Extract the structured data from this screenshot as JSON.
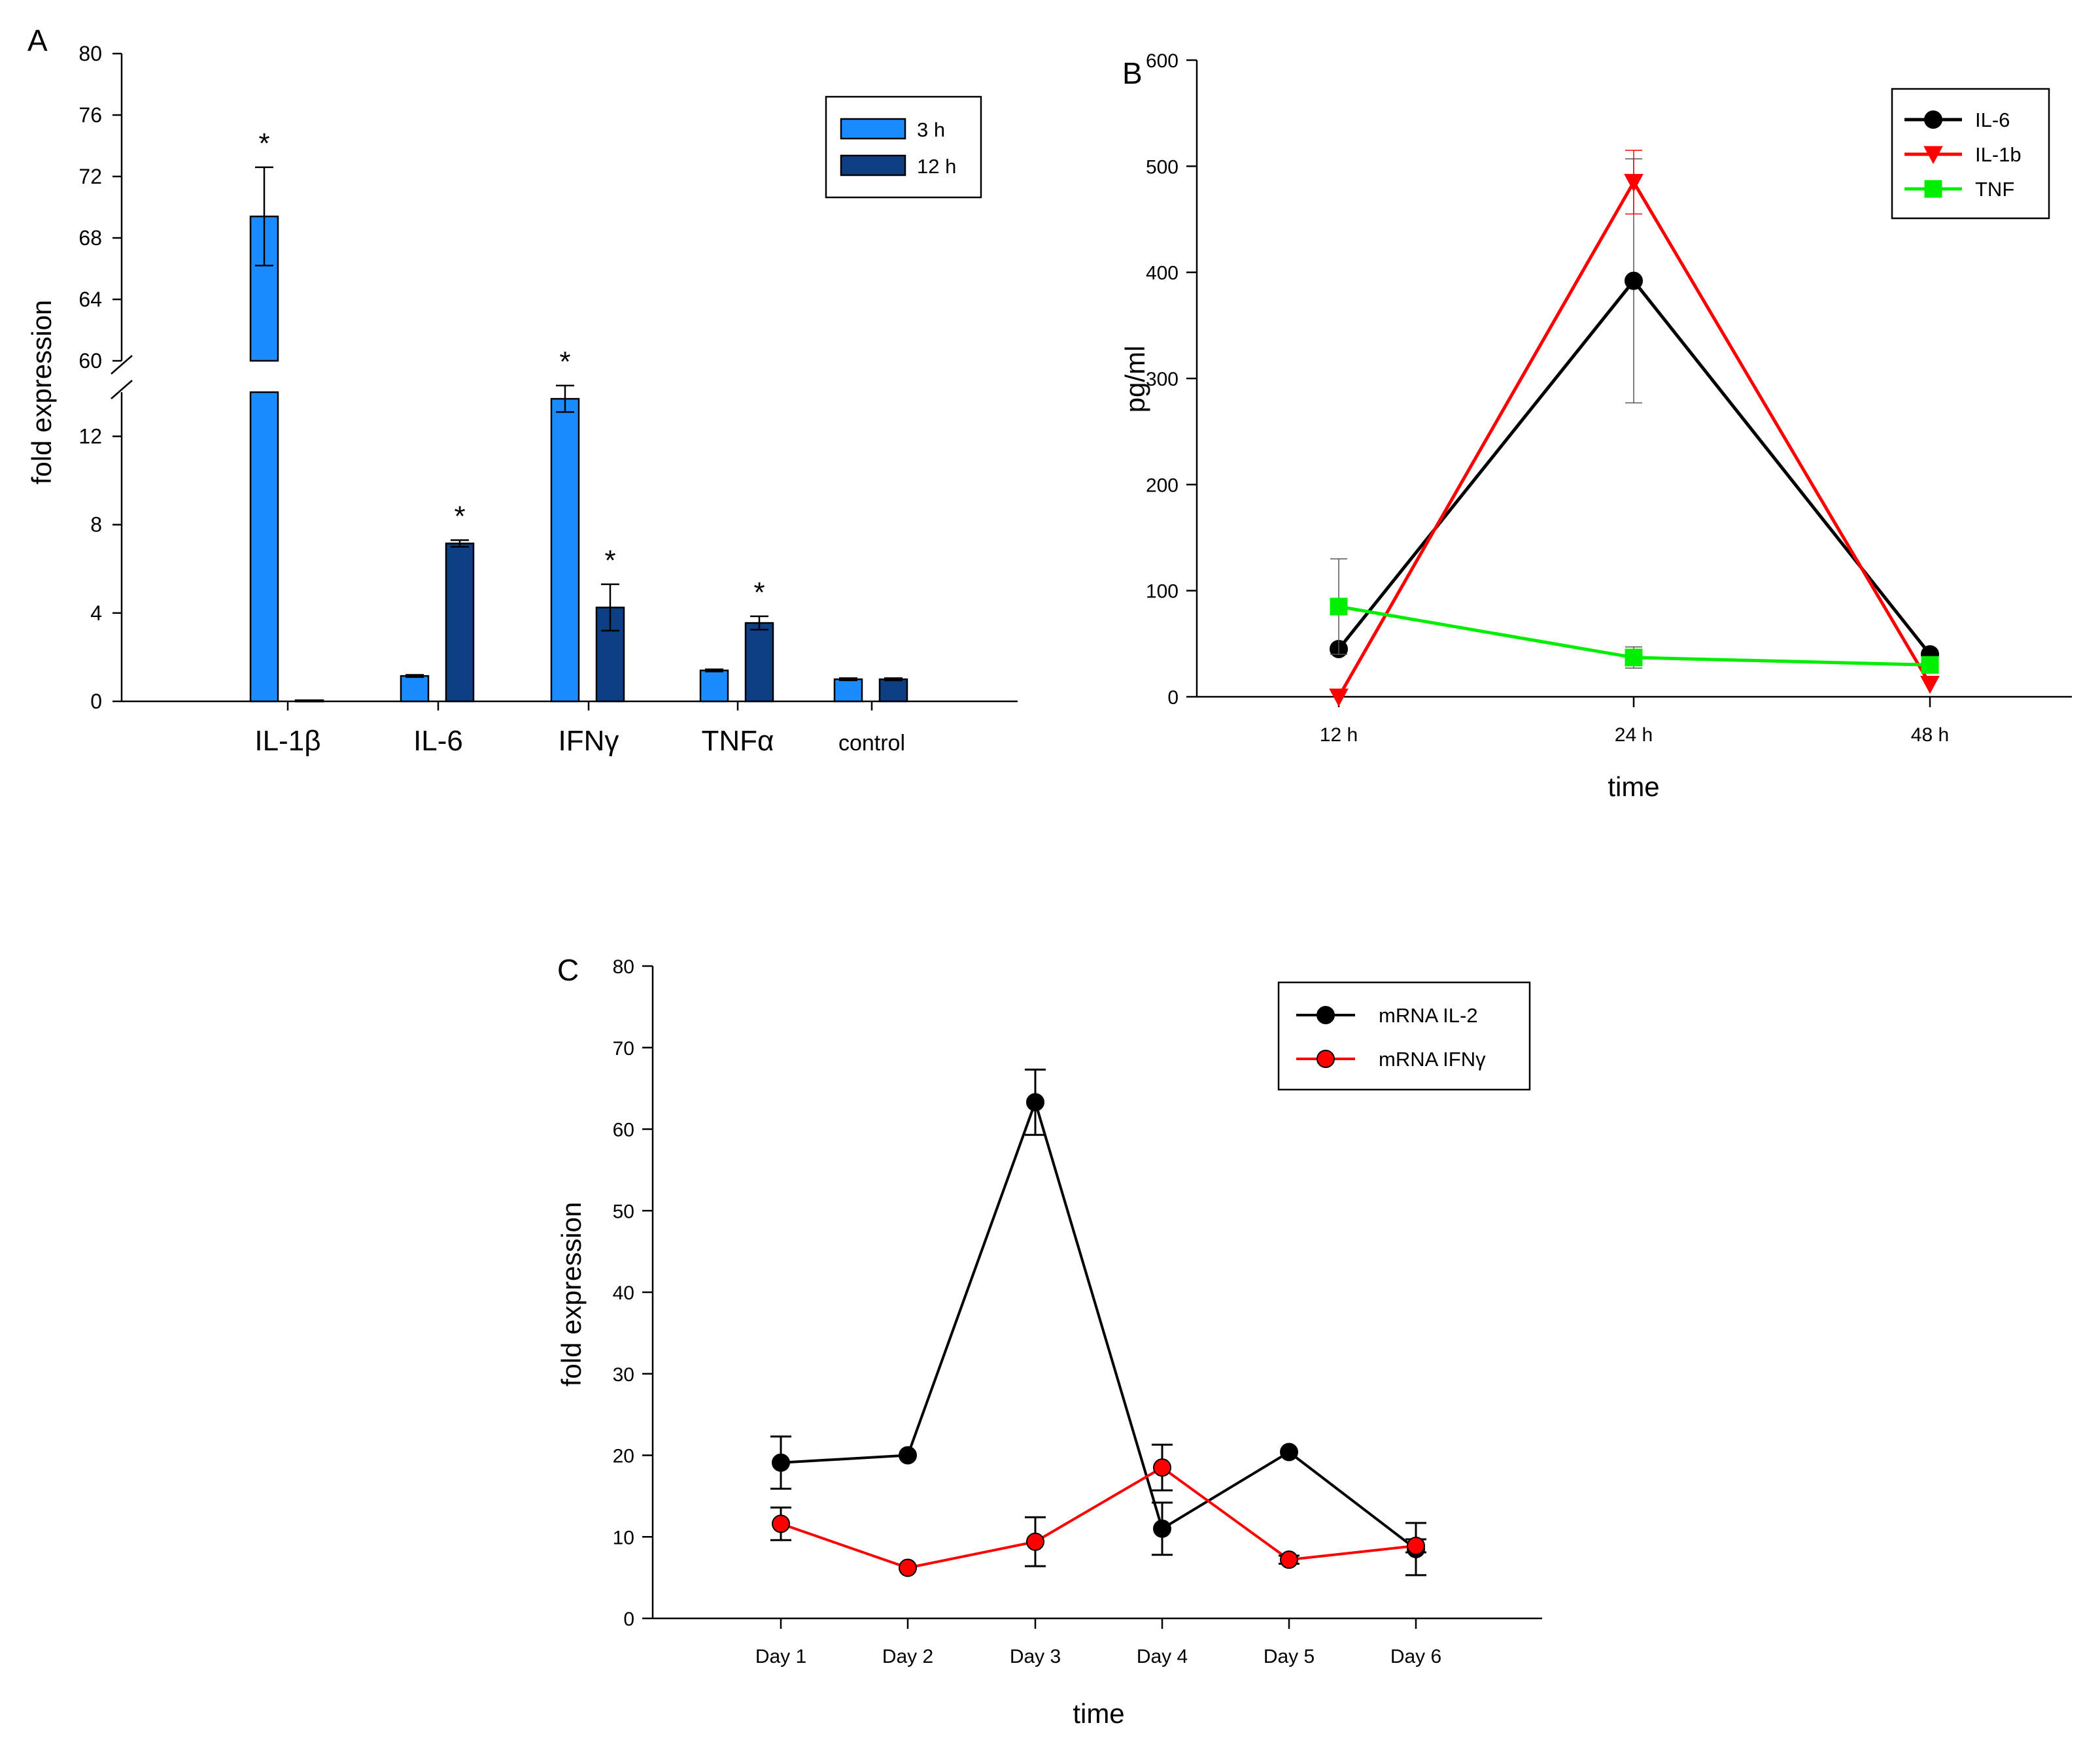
{
  "chart_data": [
    {
      "panel": "A",
      "type": "bar",
      "ylabel": "fold expression",
      "xlabel": "",
      "categories": [
        "IL-1β",
        "IL-6",
        "IFNγ",
        "TNFα",
        "control"
      ],
      "series": [
        {
          "name": "3 h",
          "color": "#1a8cff",
          "values": [
            69.4,
            1.15,
            13.7,
            1.4,
            1.0
          ],
          "errors": [
            3.2,
            0.05,
            0.6,
            0.05,
            0.05
          ]
        },
        {
          "name": "12 h",
          "color": "#0d3f82",
          "values": [
            0.05,
            7.15,
            4.25,
            3.55,
            1.0
          ],
          "errors": [
            0.0,
            0.15,
            1.05,
            0.3,
            0.05
          ]
        }
      ],
      "significance": [
        {
          "category": "IL-1β",
          "series": "3 h",
          "label": "*"
        },
        {
          "category": "IL-6",
          "series": "12 h",
          "label": "*"
        },
        {
          "category": "IFNγ",
          "series": "3 h",
          "label": "*"
        },
        {
          "category": "IFNγ",
          "series": "12 h",
          "label": "*"
        },
        {
          "category": "TNFα",
          "series": "12 h",
          "label": "*"
        }
      ],
      "axis_break": {
        "lower": [
          0,
          14
        ],
        "upper": [
          60,
          80
        ]
      },
      "yticks_lower": [
        "0",
        "4",
        "8",
        "12"
      ],
      "yticks_upper": [
        "60",
        "64",
        "68",
        "72",
        "76",
        "80"
      ],
      "legend_position": "top-right"
    },
    {
      "panel": "B",
      "type": "line",
      "xlabel": "time",
      "ylabel": "pg/ml",
      "categories": [
        "12 h",
        "24 h",
        "48 h"
      ],
      "ylim": [
        0,
        600
      ],
      "yticks": [
        "0",
        "100",
        "200",
        "300",
        "400",
        "500",
        "600"
      ],
      "series": [
        {
          "name": "IL-6",
          "color": "#000000",
          "marker": "circle",
          "values": [
            45,
            392,
            40
          ],
          "errors": [
            0,
            115,
            0
          ]
        },
        {
          "name": "IL-1b",
          "color": "#ff0000",
          "marker": "triangle-down",
          "values": [
            0,
            485,
            12
          ],
          "errors": [
            0,
            30,
            0
          ]
        },
        {
          "name": "TNF",
          "color": "#00ee00",
          "marker": "square",
          "values": [
            85,
            37,
            30
          ],
          "errors": [
            45,
            10,
            5
          ]
        }
      ],
      "legend_position": "top-right"
    },
    {
      "panel": "C",
      "type": "line",
      "xlabel": "time",
      "ylabel": "fold expression",
      "categories": [
        "Day 1",
        "Day 2",
        "Day 3",
        "Day 4",
        "Day 5",
        "Day 6"
      ],
      "ylim": [
        0,
        80
      ],
      "yticks": [
        "0",
        "10",
        "20",
        "30",
        "40",
        "50",
        "60",
        "70",
        "80"
      ],
      "series": [
        {
          "name": "mRNA IL-2",
          "color": "#000000",
          "marker": "circle",
          "values": [
            19.1,
            20.0,
            63.3,
            11.0,
            20.4,
            8.5
          ],
          "errors": [
            3.2,
            0,
            4.0,
            3.2,
            0,
            3.2
          ]
        },
        {
          "name": "mRNA IFNγ",
          "color": "#ff0000",
          "marker": "circle",
          "values": [
            11.6,
            6.2,
            9.4,
            18.5,
            7.2,
            8.9
          ],
          "errors": [
            2.0,
            0,
            3.0,
            2.8,
            0.5,
            0.8
          ]
        }
      ],
      "legend_position": "top-right"
    }
  ]
}
